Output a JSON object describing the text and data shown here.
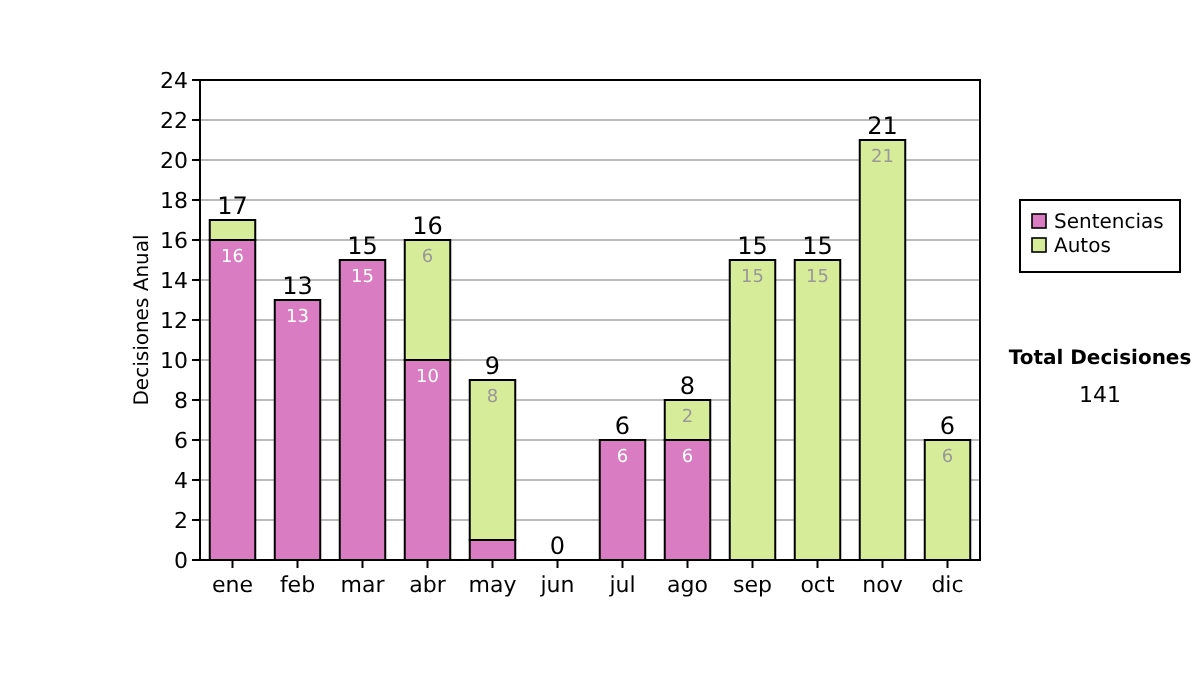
{
  "chart_data": {
    "type": "bar",
    "stacked": true,
    "ylabel": "Decisiones Anual",
    "categories": [
      "ene",
      "feb",
      "mar",
      "abr",
      "may",
      "jun",
      "jul",
      "ago",
      "sep",
      "oct",
      "nov",
      "dic"
    ],
    "series": [
      {
        "name": "Sentencias",
        "color": "#da7cc2",
        "values": [
          16,
          13,
          15,
          10,
          1,
          0,
          6,
          6,
          0,
          0,
          0,
          0
        ],
        "value_labels": [
          "16",
          "13",
          "15",
          "10",
          null,
          null,
          "6",
          "6",
          null,
          null,
          null,
          null
        ]
      },
      {
        "name": "Autos",
        "color": "#d6ec98",
        "values": [
          1,
          0,
          0,
          6,
          8,
          0,
          0,
          2,
          15,
          15,
          21,
          6
        ],
        "value_labels": [
          null,
          null,
          null,
          "6",
          "8",
          null,
          null,
          "2",
          "15",
          "15",
          "21",
          "6"
        ]
      }
    ],
    "totals": [
      "17",
      "13",
      "15",
      "16",
      "9",
      "0",
      "6",
      "8",
      "15",
      "15",
      "21",
      "6"
    ],
    "ylim": [
      0,
      24
    ],
    "yticks": [
      0,
      2,
      4,
      6,
      8,
      10,
      12,
      14,
      16,
      18,
      20,
      22,
      24
    ],
    "grid": "y",
    "legend": "right",
    "annotations": [
      "Total Decisiones",
      "141"
    ]
  }
}
